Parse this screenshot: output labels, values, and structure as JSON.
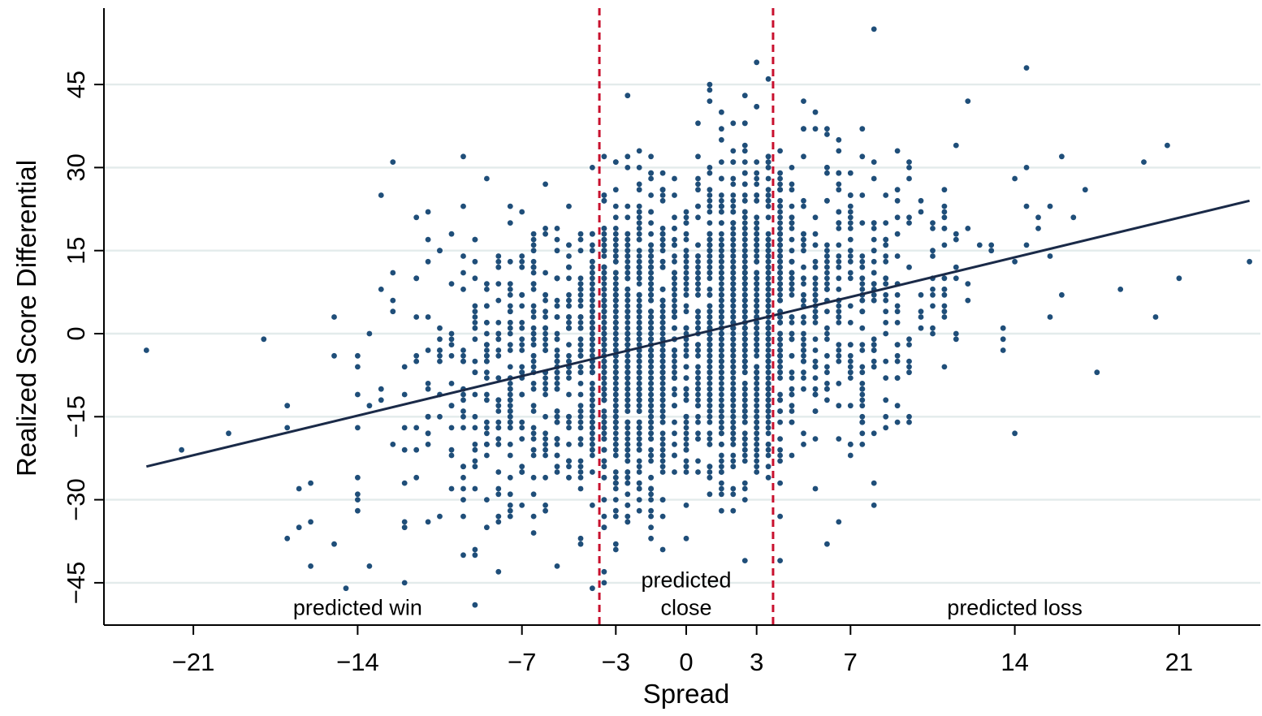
{
  "chart_data": {
    "type": "scatter",
    "xlabel": "Spread",
    "ylabel": "Realized Score Differential",
    "xlim": [
      -24,
      24.5
    ],
    "ylim": [
      -53,
      59
    ],
    "xticks": [
      -21,
      -14,
      -7,
      -3,
      0,
      3,
      7,
      14,
      21
    ],
    "xtick_labels": [
      "−21",
      "−14",
      "−7",
      "−3",
      "0",
      "3",
      "7",
      "14",
      "21"
    ],
    "yticks": [
      -45,
      -30,
      -15,
      0,
      15,
      30,
      45
    ],
    "ytick_labels": [
      "−45",
      "−30",
      "−15",
      "0",
      "15",
      "30",
      "45"
    ],
    "grid": "horizontal",
    "legend": "none",
    "colors": {
      "points": "#1f4e79",
      "fit_line": "#1a2a48",
      "threshold_lines": "#c8102e",
      "grid": "#e3ebeb"
    },
    "fit_line": {
      "x": [
        -23,
        24
      ],
      "y": [
        -24,
        24
      ]
    },
    "thresholds": [
      -3.7,
      3.7
    ],
    "region_labels": [
      {
        "text": "predicted win",
        "x": -14,
        "y": -49.5
      },
      {
        "text": "predicted",
        "x": 0,
        "y": -44.5
      },
      {
        "text": "close",
        "x": 0,
        "y": -49.5
      },
      {
        "text": "predicted loss",
        "x": 14,
        "y": -49.5
      }
    ],
    "sample_points_extreme": [
      {
        "x": -23,
        "y": -3
      },
      {
        "x": -21.5,
        "y": -21
      },
      {
        "x": -19.5,
        "y": -18
      },
      {
        "x": -18,
        "y": -1
      },
      {
        "x": -17,
        "y": -17
      },
      {
        "x": -16.5,
        "y": -35
      },
      {
        "x": -15,
        "y": -38
      },
      {
        "x": -14.5,
        "y": -46
      },
      {
        "x": -12.5,
        "y": 31
      },
      {
        "x": -9.5,
        "y": 32
      },
      {
        "x": -9,
        "y": -49
      },
      {
        "x": -8,
        "y": -43
      },
      {
        "x": -2.5,
        "y": 43
      },
      {
        "x": 1,
        "y": 45
      },
      {
        "x": 3,
        "y": 49
      },
      {
        "x": 3.5,
        "y": 46
      },
      {
        "x": 8,
        "y": 55
      },
      {
        "x": 14.5,
        "y": 48
      },
      {
        "x": 19.5,
        "y": 31
      },
      {
        "x": 20,
        "y": 3
      },
      {
        "x": 20.5,
        "y": 34
      },
      {
        "x": 21,
        "y": 10
      },
      {
        "x": 17.5,
        "y": -7
      },
      {
        "x": 14,
        "y": -18
      },
      {
        "x": 24,
        "y": 13
      },
      {
        "x": 18.5,
        "y": 8
      },
      {
        "x": 8,
        "y": -31
      },
      {
        "x": 6,
        "y": -38
      },
      {
        "x": 4,
        "y": -41
      },
      {
        "x": -3.5,
        "y": -45
      }
    ]
  }
}
